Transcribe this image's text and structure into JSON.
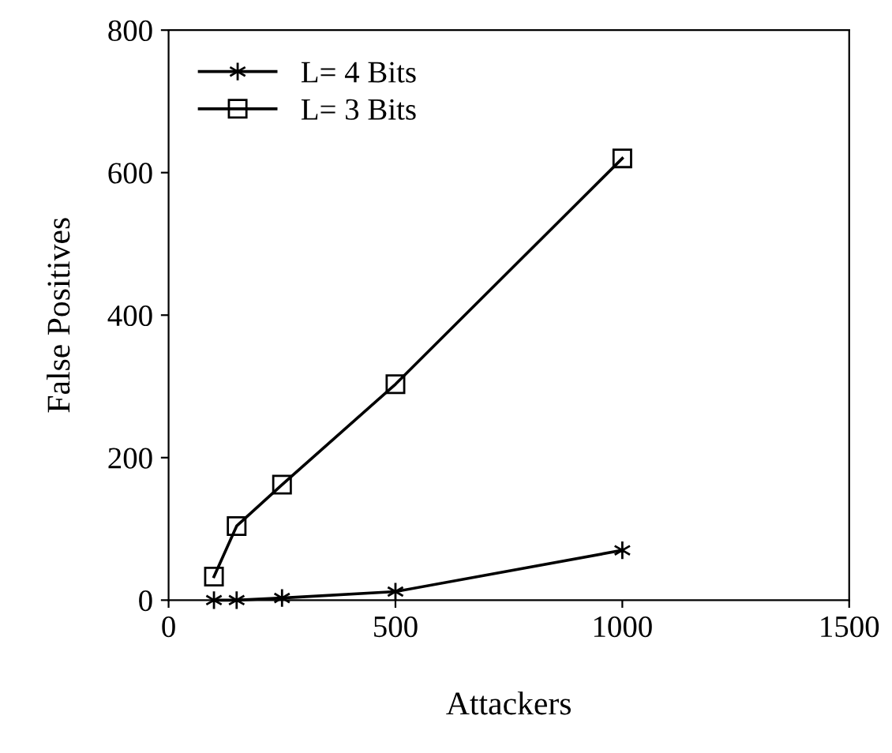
{
  "chart_data": {
    "type": "line",
    "xlabel": "Attackers",
    "ylabel": "False Positives",
    "xlim": [
      0,
      1500
    ],
    "ylim": [
      0,
      800
    ],
    "xticks": [
      0,
      500,
      1000,
      1500
    ],
    "yticks": [
      0,
      200,
      400,
      600,
      800
    ],
    "grid": false,
    "legend": "top left",
    "series": [
      {
        "name": "L= 4 Bits",
        "color": "#000000",
        "marker": "cross",
        "x": [
          100,
          150,
          250,
          500,
          1000
        ],
        "values": [
          0,
          0,
          3,
          12,
          70
        ]
      },
      {
        "name": "L= 3 Bits",
        "color": "#000000",
        "marker": "square",
        "x": [
          100,
          150,
          250,
          500,
          1000
        ],
        "values": [
          33,
          104,
          162,
          303,
          620
        ]
      }
    ]
  }
}
